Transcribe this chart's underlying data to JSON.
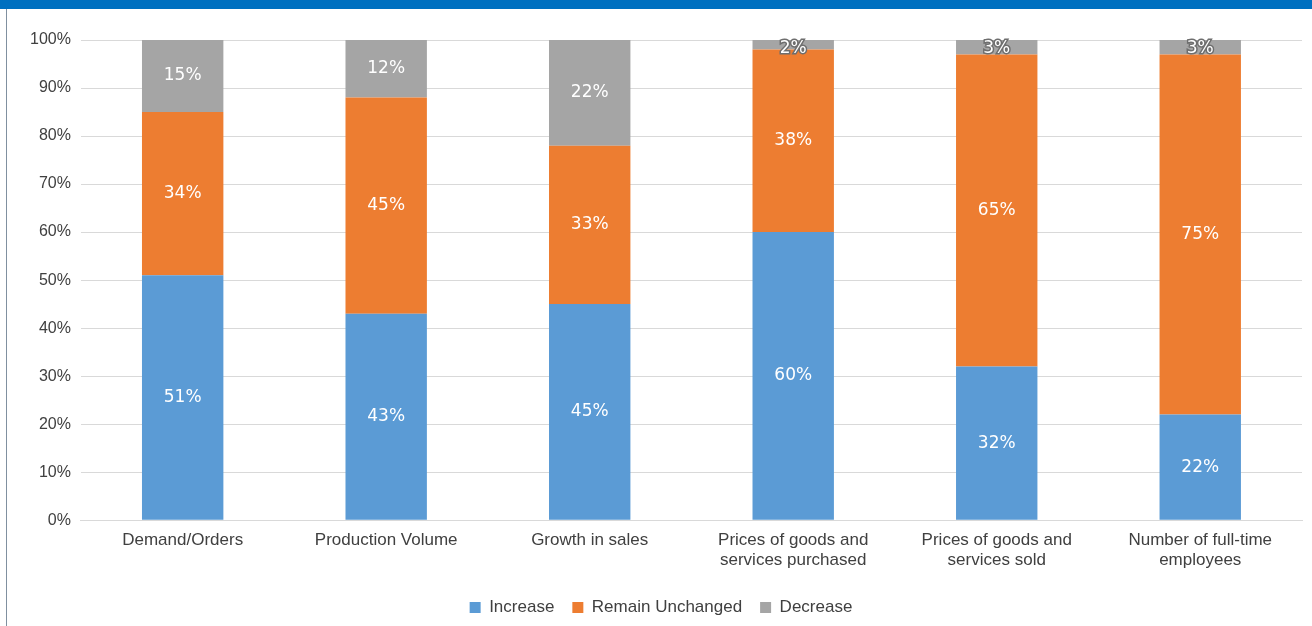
{
  "chart_data": {
    "type": "bar",
    "stacked": true,
    "categories": [
      "Demand/Orders",
      "Production Volume",
      "Growth in sales",
      "Prices of goods and services purchased",
      "Prices of goods and services sold",
      "Number of full-time employees"
    ],
    "series": [
      {
        "name": "Increase",
        "color": "#5b9bd5",
        "values": [
          51,
          43,
          45,
          60,
          32,
          22
        ],
        "value_labels": [
          "51%",
          "43%",
          "45%",
          "60%",
          "32%",
          "22%"
        ]
      },
      {
        "name": "Remain Unchanged",
        "color": "#ed7d31",
        "values": [
          34,
          45,
          33,
          38,
          65,
          75
        ],
        "value_labels": [
          "34%",
          "45%",
          "33%",
          "38%",
          "65%",
          "75%"
        ]
      },
      {
        "name": "Decrease",
        "color": "#a5a5a5",
        "values": [
          15,
          12,
          22,
          2,
          3,
          3
        ],
        "value_labels": [
          "15%",
          "12%",
          "22%",
          "2%",
          "3%",
          "3%"
        ]
      }
    ],
    "ylim": [
      0,
      100
    ],
    "yticks": [
      {
        "value": 0,
        "label": "0%"
      },
      {
        "value": 10,
        "label": "10%"
      },
      {
        "value": 20,
        "label": "20%"
      },
      {
        "value": 30,
        "label": "30%"
      },
      {
        "value": 40,
        "label": "40%"
      },
      {
        "value": 50,
        "label": "50%"
      },
      {
        "value": 60,
        "label": "60%"
      },
      {
        "value": 70,
        "label": "70%"
      },
      {
        "value": 80,
        "label": "80%"
      },
      {
        "value": 90,
        "label": "90%"
      },
      {
        "value": 100,
        "label": "100%"
      }
    ],
    "grid": "y",
    "legend": "bottom"
  }
}
